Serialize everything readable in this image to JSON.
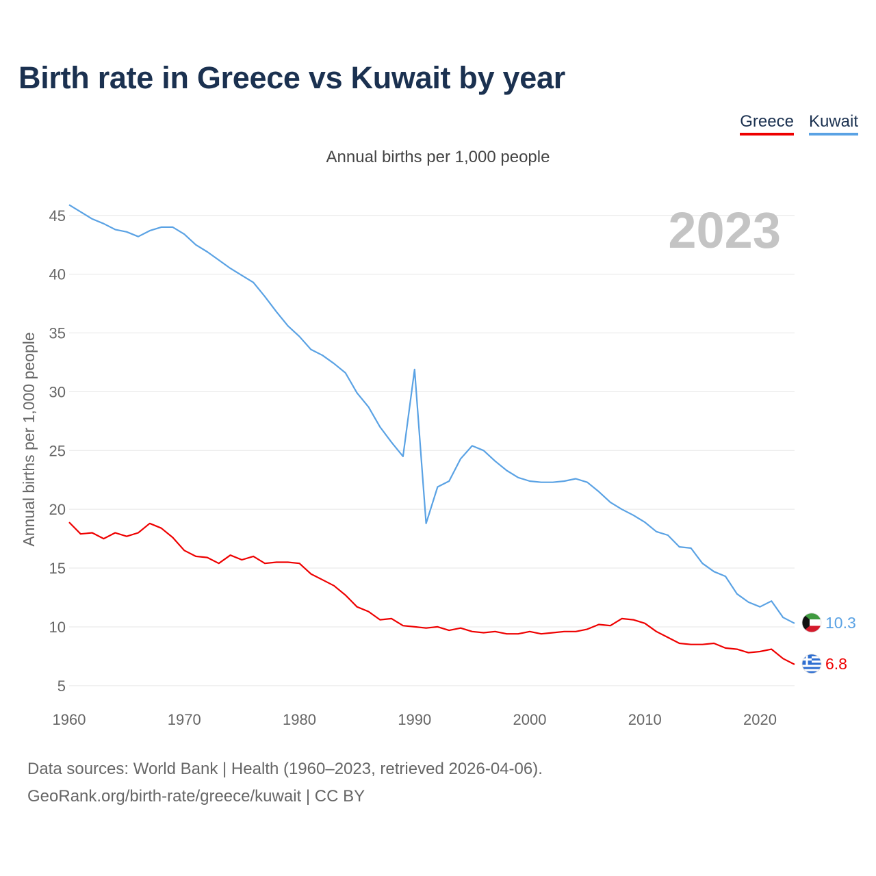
{
  "chart_data": {
    "type": "line",
    "title": "Birth rate in Greece vs Kuwait by year",
    "subtitle": "Annual births per 1,000 people",
    "ylabel": "Annual births per 1,000 people",
    "xlabel": "",
    "xlim": [
      1960,
      2023
    ],
    "ylim": [
      4,
      46.5
    ],
    "x_ticks": [
      1960,
      1970,
      1980,
      1990,
      2000,
      2010,
      2020
    ],
    "y_ticks": [
      5,
      10,
      15,
      20,
      25,
      30,
      35,
      40,
      45
    ],
    "grid": true,
    "legend_position": "top-right",
    "year_watermark": "2023",
    "x": [
      1960,
      1961,
      1962,
      1963,
      1964,
      1965,
      1966,
      1967,
      1968,
      1969,
      1970,
      1971,
      1972,
      1973,
      1974,
      1975,
      1976,
      1977,
      1978,
      1979,
      1980,
      1981,
      1982,
      1983,
      1984,
      1985,
      1986,
      1987,
      1988,
      1989,
      1990,
      1991,
      1992,
      1993,
      1994,
      1995,
      1996,
      1997,
      1998,
      1999,
      2000,
      2001,
      2002,
      2003,
      2004,
      2005,
      2006,
      2007,
      2008,
      2009,
      2010,
      2011,
      2012,
      2013,
      2014,
      2015,
      2016,
      2017,
      2018,
      2019,
      2020,
      2021,
      2022,
      2023
    ],
    "series": [
      {
        "name": "Greece",
        "color": "#ee0000",
        "end_label": "6.8",
        "flag": "greece-flag",
        "values": [
          18.9,
          17.9,
          18.0,
          17.5,
          18.0,
          17.7,
          18.0,
          18.8,
          18.4,
          17.6,
          16.5,
          16.0,
          15.9,
          15.4,
          16.1,
          15.7,
          16.0,
          15.4,
          15.5,
          15.5,
          15.4,
          14.5,
          14.0,
          13.5,
          12.7,
          11.7,
          11.3,
          10.6,
          10.7,
          10.1,
          10.0,
          9.9,
          10.0,
          9.7,
          9.9,
          9.6,
          9.5,
          9.6,
          9.4,
          9.4,
          9.6,
          9.4,
          9.5,
          9.6,
          9.6,
          9.8,
          10.2,
          10.1,
          10.7,
          10.6,
          10.3,
          9.6,
          9.1,
          8.6,
          8.5,
          8.5,
          8.6,
          8.2,
          8.1,
          7.8,
          7.9,
          8.1,
          7.3,
          6.8
        ]
      },
      {
        "name": "Kuwait",
        "color": "#5aa2e4",
        "end_label": "10.3",
        "flag": "kuwait-flag",
        "values": [
          45.9,
          45.3,
          44.7,
          44.3,
          43.8,
          43.6,
          43.2,
          43.7,
          44.0,
          44.0,
          43.4,
          42.5,
          41.9,
          41.2,
          40.5,
          39.9,
          39.3,
          38.1,
          36.8,
          35.6,
          34.7,
          33.6,
          33.1,
          32.4,
          31.6,
          29.9,
          28.7,
          27.0,
          25.7,
          24.5,
          31.9,
          18.8,
          21.9,
          22.4,
          24.3,
          25.4,
          25.0,
          24.1,
          23.3,
          22.7,
          22.4,
          22.3,
          22.3,
          22.4,
          22.6,
          22.3,
          21.5,
          20.6,
          20.0,
          19.5,
          18.9,
          18.1,
          17.8,
          16.8,
          16.7,
          15.4,
          14.7,
          14.3,
          12.8,
          12.1,
          11.7,
          12.2,
          10.8,
          10.3
        ]
      }
    ]
  },
  "legend": {
    "items": [
      {
        "label": "Greece",
        "color": "#ee0000"
      },
      {
        "label": "Kuwait",
        "color": "#5aa2e4"
      }
    ]
  },
  "footer": {
    "line1": "Data sources: World Bank | Health (1960–2023, retrieved 2026-04-06).",
    "line2": "GeoRank.org/birth-rate/greece/kuwait | CC BY"
  }
}
